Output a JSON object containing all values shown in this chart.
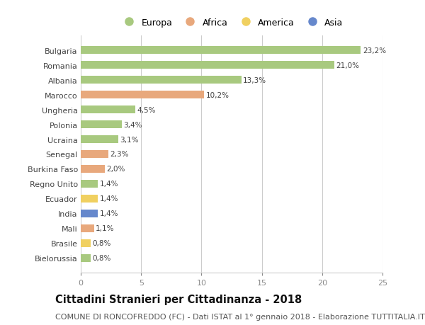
{
  "countries": [
    "Bulgaria",
    "Romania",
    "Albania",
    "Marocco",
    "Ungheria",
    "Polonia",
    "Ucraina",
    "Senegal",
    "Burkina Faso",
    "Regno Unito",
    "Ecuador",
    "India",
    "Mali",
    "Brasile",
    "Bielorussia"
  ],
  "values": [
    23.2,
    21.0,
    13.3,
    10.2,
    4.5,
    3.4,
    3.1,
    2.3,
    2.0,
    1.4,
    1.4,
    1.4,
    1.1,
    0.8,
    0.8
  ],
  "labels": [
    "23,2%",
    "21,0%",
    "13,3%",
    "10,2%",
    "4,5%",
    "3,4%",
    "3,1%",
    "2,3%",
    "2,0%",
    "1,4%",
    "1,4%",
    "1,4%",
    "1,1%",
    "0,8%",
    "0,8%"
  ],
  "continents": [
    "Europa",
    "Europa",
    "Europa",
    "Africa",
    "Europa",
    "Europa",
    "Europa",
    "Africa",
    "Africa",
    "Europa",
    "America",
    "Asia",
    "Africa",
    "America",
    "Europa"
  ],
  "continent_colors": {
    "Europa": "#a8c97f",
    "Africa": "#e8a87c",
    "America": "#f0d060",
    "Asia": "#6688cc"
  },
  "legend_order": [
    "Europa",
    "Africa",
    "America",
    "Asia"
  ],
  "xlim": [
    0,
    25
  ],
  "xticks": [
    0,
    5,
    10,
    15,
    20,
    25
  ],
  "background_color": "#ffffff",
  "grid_color": "#cccccc",
  "title": "Cittadini Stranieri per Cittadinanza - 2018",
  "subtitle": "COMUNE DI RONCOFREDDO (FC) - Dati ISTAT al 1° gennaio 2018 - Elaborazione TUTTITALIA.IT",
  "title_fontsize": 10.5,
  "subtitle_fontsize": 8,
  "bar_height": 0.55,
  "label_fontsize": 7.5
}
